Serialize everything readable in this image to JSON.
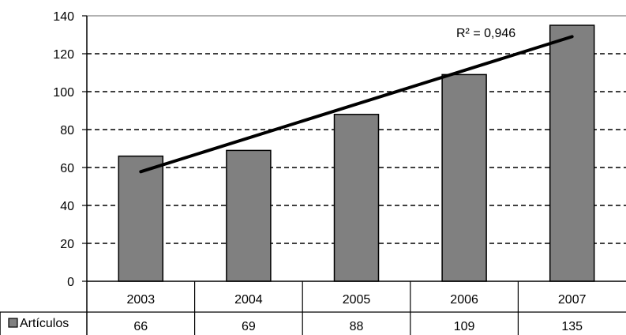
{
  "chart_data": {
    "type": "bar",
    "title": "",
    "xlabel": "",
    "ylabel": "",
    "categories": [
      "2003",
      "2004",
      "2005",
      "2006",
      "2007"
    ],
    "series": [
      {
        "name": "Artículos",
        "values": [
          66,
          69,
          88,
          109,
          135
        ],
        "color": "#808080"
      }
    ],
    "ylim": [
      0,
      140
    ],
    "yticks": [
      "0",
      "20",
      "40",
      "60",
      "80",
      "100",
      "120",
      "140"
    ],
    "grid": "horizontal dashed",
    "trendline": {
      "type": "linear",
      "label": "R² = 0,946",
      "color": "#000000"
    },
    "data_table": {
      "legend_label": "Artículos",
      "values": [
        "66",
        "69",
        "88",
        "109",
        "135"
      ]
    }
  }
}
